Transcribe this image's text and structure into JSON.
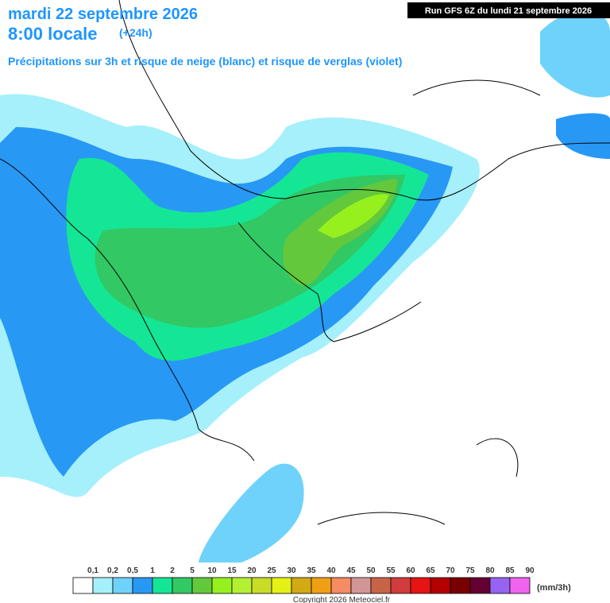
{
  "header": {
    "date": "mardi 22 septembre 2026",
    "time": "8:00 locale",
    "lead": "(+24h)",
    "subtitle": "Précipitations sur 3h et risque de neige (blanc) et risque de verglas (violet)",
    "run": "Run GFS 6Z du lundi 21 septembre 2026"
  },
  "legend": {
    "labels": [
      "0,1",
      "0,2",
      "0,5",
      "1",
      "2",
      "5",
      "10",
      "15",
      "20",
      "25",
      "30",
      "35",
      "40",
      "45",
      "50",
      "55",
      "60",
      "65",
      "70",
      "75",
      "80",
      "85",
      "90"
    ],
    "colors": [
      "#ffffff",
      "#a5f0fa",
      "#6ed2fa",
      "#2898f5",
      "#14e696",
      "#32c864",
      "#64c83c",
      "#96f01e",
      "#b4f032",
      "#c8dc28",
      "#e6f014",
      "#d2aa14",
      "#f0a014",
      "#f58c64",
      "#d29696",
      "#c86446",
      "#d23c3c",
      "#e61414",
      "#b40000",
      "#780000",
      "#640032",
      "#9664f0",
      "#f064f0"
    ],
    "unit": "(mm/3h)"
  },
  "footer": {
    "copyright": "Copyright 2026 Meteociel.fr"
  }
}
